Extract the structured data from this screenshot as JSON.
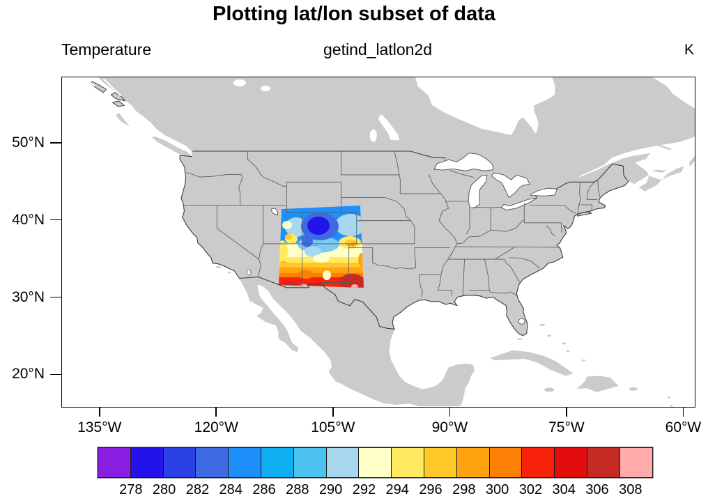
{
  "title": "Plotting lat/lon subset of data",
  "header": {
    "left": "Temperature",
    "center": "getind_latlon2d",
    "right": "K"
  },
  "axes": {
    "lat_tick_labels": [
      "50°N",
      "40°N",
      "30°N",
      "20°N"
    ],
    "lat_tick_values_degN": [
      50,
      40,
      30,
      20
    ],
    "lon_tick_labels": [
      "135°W",
      "120°W",
      "105°W",
      "90°W",
      "75°W",
      "60°W"
    ],
    "lon_tick_values_degW": [
      135,
      120,
      105,
      90,
      75,
      60
    ]
  },
  "colorbar": {
    "labels": [
      "278",
      "280",
      "282",
      "284",
      "286",
      "288",
      "290",
      "292",
      "294",
      "296",
      "298",
      "300",
      "302",
      "304",
      "306",
      "308"
    ],
    "colors": [
      "#8A1FE1",
      "#2313EA",
      "#2C41E5",
      "#3E6AE3",
      "#1E90FB",
      "#0FAEF2",
      "#4CC2F0",
      "#A8D7EE",
      "#FFFFC8",
      "#FFEA61",
      "#FFC829",
      "#FFA410",
      "#FB8005",
      "#F8210A",
      "#E30D0D",
      "#C62A24",
      "#FFABAB"
    ]
  },
  "map_colors": {
    "land": "#CBCBCB",
    "water": "#FFFFFF",
    "us_outline": "#3A3A3A",
    "state_border": "#5A5A5A",
    "frame": "#000000"
  },
  "chart_data": {
    "type": "heatmap",
    "subtype": "filled-contour-on-map",
    "title": "Plotting lat/lon subset of data",
    "variable": "Temperature",
    "units": "K",
    "annotation": "getind_latlon2d",
    "projection": "cylindrical equidistant",
    "map_extent": {
      "lon_W_range": [
        140,
        59
      ],
      "lat_N_range": [
        16,
        58.5
      ]
    },
    "xlabel_ticks_degW": [
      135,
      120,
      105,
      90,
      75,
      60
    ],
    "ylabel_ticks_degN": [
      50,
      40,
      30,
      20
    ],
    "contour_levels_K": [
      278,
      280,
      282,
      284,
      286,
      288,
      290,
      292,
      294,
      296,
      298,
      300,
      302,
      304,
      306,
      308
    ],
    "subset_region": {
      "lat_N_range": [
        31.5,
        42.0
      ],
      "lon_W_range": [
        112.0,
        101.6
      ],
      "area": "Colorado and New Mexico with edges of Utah, Arizona and far-west Texas"
    },
    "pattern_summary": "Coldest air (278-284 K, blues) over the central Colorado Rockies; light blues around it; pale-yellow/yellow belt (292-296 K) across the Colorado-New Mexico border; oranges and reds (298-306 K) over southern New Mexico with small >308 K (pink) spots near the Mexico border; rest of the map is plain gray land with white ocean and lakes.",
    "approx_values_K": {
      "lats_N": [
        41.5,
        39.5,
        37.5,
        35.5,
        33.5,
        31.8
      ],
      "lons_W": [
        111,
        109,
        107,
        105,
        103
      ],
      "grid": [
        [
          288,
          284,
          282,
          286,
          288
        ],
        [
          292,
          282,
          280,
          286,
          292
        ],
        [
          294,
          288,
          286,
          292,
          294
        ],
        [
          296,
          294,
          292,
          296,
          298
        ],
        [
          298,
          296,
          298,
          302,
          304
        ],
        [
          300,
          302,
          304,
          306,
          306
        ]
      ],
      "min_K": 279,
      "max_K": 309
    },
    "legend": {
      "type": "horizontal labelbar",
      "position": "bottom",
      "boxes": 17
    }
  }
}
